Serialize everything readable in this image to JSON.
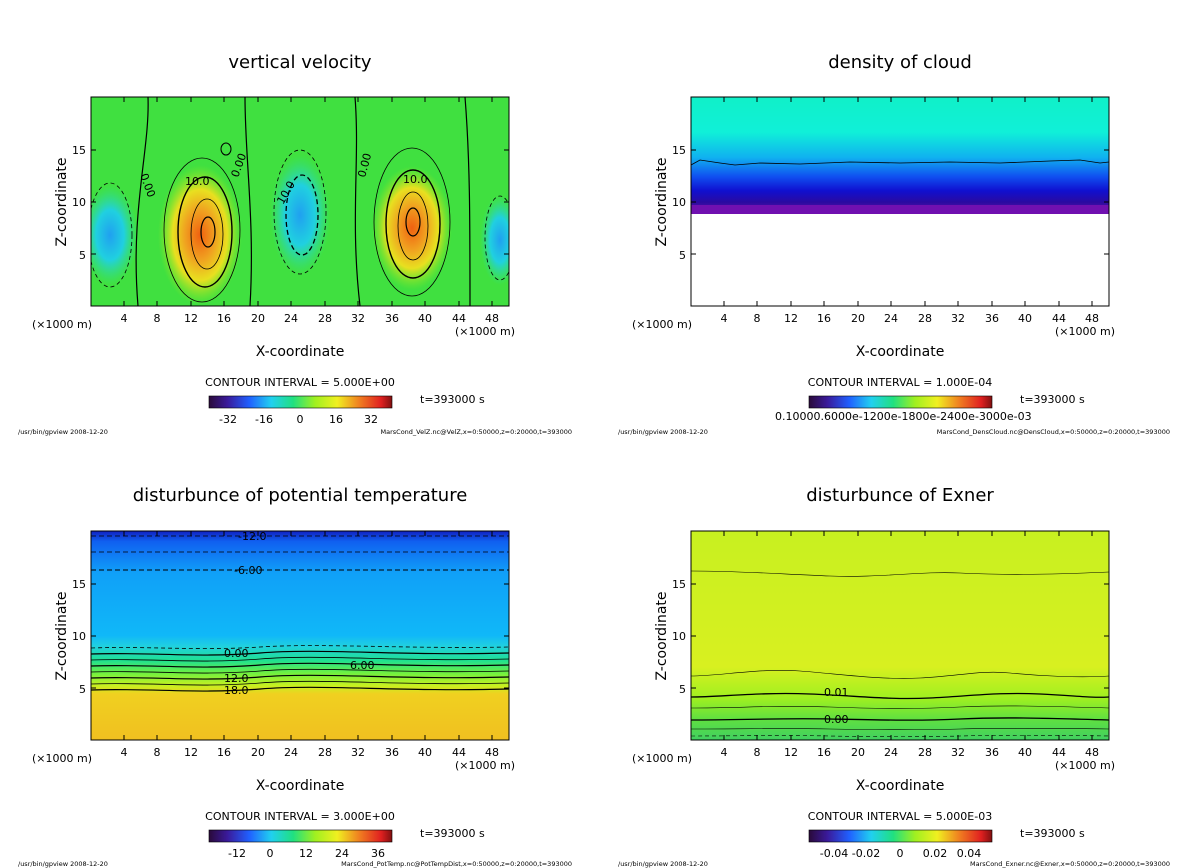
{
  "chart_data": [
    {
      "type": "contour",
      "title": "vertical velocity",
      "xlabel": "X-coordinate",
      "ylabel": "Z-coordinate",
      "x_unit": "(×1000 m)",
      "xlim": [
        0,
        50
      ],
      "ylim": [
        0,
        20
      ],
      "xticks": [
        4,
        8,
        12,
        16,
        20,
        24,
        28,
        32,
        36,
        40,
        44,
        48
      ],
      "yticks": [
        5,
        10,
        15
      ],
      "contour_interval": "CONTOUR INTERVAL = 5.000E+00",
      "time": "t=393000 s",
      "colorbar_ticks": [
        "-32",
        "-16",
        "0",
        "16",
        "32"
      ],
      "contour_labels": [
        "0.00",
        "10.0",
        "0.00",
        "10.0",
        "0.00",
        "10.0"
      ],
      "footer_left": "/usr/bin/gpview  2008-12-20",
      "footer_right": "MarsCond_VelZ.nc@VelZ,x=0:50000,z=0:20000,t=393000"
    },
    {
      "type": "contour",
      "title": "density of cloud",
      "xlabel": "X-coordinate",
      "ylabel": "Z-coordinate",
      "x_unit": "(×1000 m)",
      "xlim": [
        0,
        50
      ],
      "ylim": [
        0,
        20
      ],
      "xticks": [
        4,
        8,
        12,
        16,
        20,
        24,
        28,
        32,
        36,
        40,
        44,
        48
      ],
      "yticks": [
        5,
        10,
        15
      ],
      "contour_interval": "CONTOUR INTERVAL = 1.000E-04",
      "time": "t=393000 s",
      "colorbar_ticks_text": "0.10000.6000e-1200e-1800e-2400e-3000e-03",
      "footer_left": "/usr/bin/gpview  2008-12-20",
      "footer_right": "MarsCond_DensCloud.nc@DensCloud,x=0:50000,z=0:20000,t=393000"
    },
    {
      "type": "contour",
      "title": "disturbunce of potential temperature",
      "xlabel": "X-coordinate",
      "ylabel": "Z-coordinate",
      "x_unit": "(×1000 m)",
      "xlim": [
        0,
        50
      ],
      "ylim": [
        0,
        20
      ],
      "xticks": [
        4,
        8,
        12,
        16,
        20,
        24,
        28,
        32,
        36,
        40,
        44,
        48
      ],
      "yticks": [
        5,
        10,
        15
      ],
      "contour_interval": "CONTOUR INTERVAL = 3.000E+00",
      "time": "t=393000 s",
      "colorbar_ticks": [
        "-12",
        "0",
        "12",
        "24",
        "36"
      ],
      "contour_labels": [
        "-12.0",
        "-6.00",
        "0.00",
        "6.00",
        "12.0",
        "18.0"
      ],
      "footer_left": "/usr/bin/gpview  2008-12-20",
      "footer_right": "MarsCond_PotTemp.nc@PotTempDist,x=0:50000,z=0:20000,t=393000"
    },
    {
      "type": "contour",
      "title": "disturbunce of Exner",
      "xlabel": "X-coordinate",
      "ylabel": "Z-coordinate",
      "x_unit": "(×1000 m)",
      "xlim": [
        0,
        50
      ],
      "ylim": [
        0,
        20
      ],
      "xticks": [
        4,
        8,
        12,
        16,
        20,
        24,
        28,
        32,
        36,
        40,
        44,
        48
      ],
      "yticks": [
        5,
        10,
        15
      ],
      "contour_interval": "CONTOUR INTERVAL = 5.000E-03",
      "time": "t=393000 s",
      "colorbar_ticks": [
        "-0.04",
        "-0.02",
        "0",
        "0.02",
        "0.04"
      ],
      "contour_labels": [
        "0.01",
        "0.00"
      ],
      "footer_left": "/usr/bin/gpview  2008-12-20",
      "footer_right": "MarsCond_Exner.nc@Exner,x=0:50000,z=0:20000,t=393000"
    }
  ]
}
